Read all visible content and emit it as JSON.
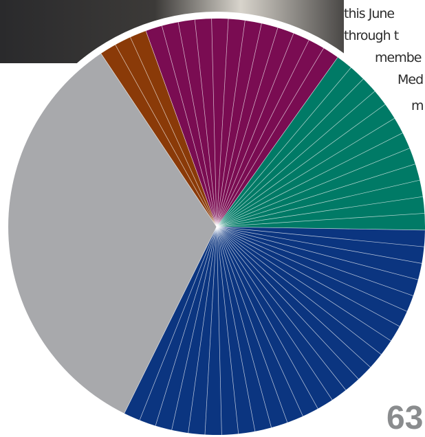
{
  "chart_data": {
    "type": "pie",
    "values": [
      3,
      12,
      12,
      25,
      26
    ],
    "colors": [
      "#8a3a08",
      "#7a0c52",
      "#007a66",
      "#0b3580",
      "#a8a9ac"
    ]
  },
  "article": {
    "lines": [
      "this June",
      "through t",
      "membe",
      "Med",
      "m"
    ],
    "number": "63"
  }
}
